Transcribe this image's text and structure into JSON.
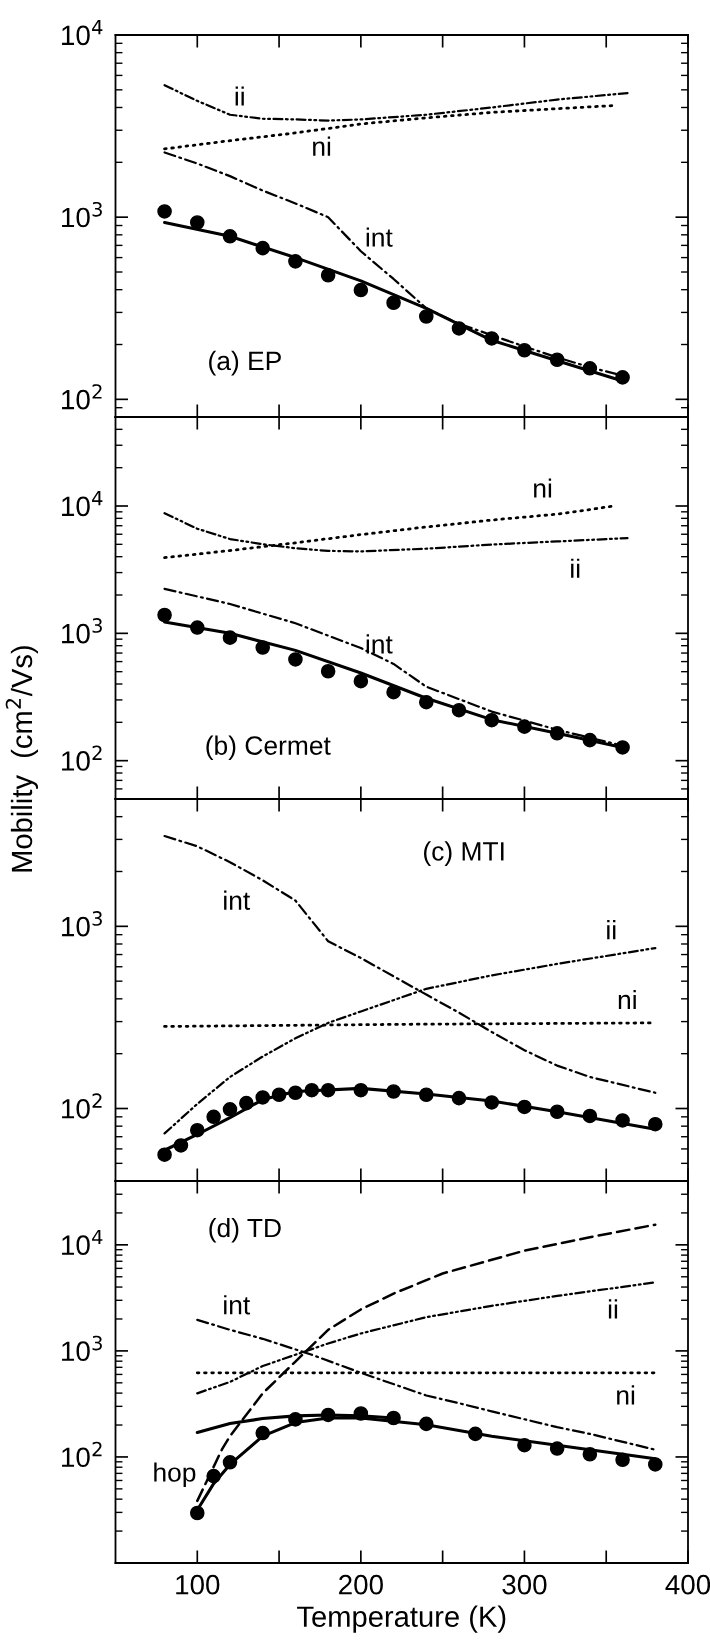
{
  "chart_data": [
    {
      "type": "line",
      "log": true,
      "xlim": [
        50,
        400
      ],
      "xticks": [
        100,
        150,
        200,
        250,
        300,
        350,
        400
      ],
      "ylim": [
        80,
        10000
      ],
      "yticks": [
        {
          "value": 100,
          "label": "10$^{2}$"
        },
        {
          "value": 1000,
          "label": "10$^{3}$"
        },
        {
          "value": 10000,
          "label": "10$^{4}$"
        }
      ],
      "tick_labels": "y",
      "grid": false,
      "series": [
        {
          "type": "scatter",
          "marker": "circle",
          "color": "#000000",
          "x": [
            80,
            100,
            120,
            140,
            160,
            180,
            200,
            220,
            240,
            260,
            280,
            300,
            320,
            340,
            360
          ],
          "values": [
            1075,
            935,
            785,
            676,
            572,
            480,
            398,
            339,
            285,
            245,
            216,
            186,
            165,
            148,
            132
          ]
        },
        {
          "type": "line",
          "line_style": "solid",
          "color": "#000000",
          "x": [
            80,
            120,
            160,
            200,
            240,
            280,
            320,
            360
          ],
          "values": [
            935,
            785,
            600,
            447,
            316,
            211,
            163,
            126
          ]
        },
        {
          "type": "line",
          "line_style": "dashdot",
          "color": "#000000",
          "x": [
            80,
            100,
            120,
            140,
            160,
            180,
            200,
            220,
            240,
            260,
            280,
            300,
            320,
            340,
            360
          ],
          "values": [
            2265,
            1970,
            1680,
            1400,
            1190,
            1000,
            650,
            458,
            316,
            260,
            225,
            195,
            170,
            150,
            135
          ]
        },
        {
          "type": "line",
          "line_style": "dashdotdot",
          "color": "#000000",
          "x": [
            80,
            100,
            120,
            140,
            160,
            180,
            200,
            240,
            280,
            320,
            363
          ],
          "values": [
            5300,
            4350,
            3650,
            3470,
            3440,
            3390,
            3440,
            3650,
            4000,
            4420,
            4800
          ]
        },
        {
          "type": "line",
          "line_style": "dotted",
          "color": "#000000",
          "x": [
            80,
            120,
            160,
            200,
            240,
            280,
            320,
            355
          ],
          "values": [
            2370,
            2630,
            2900,
            3250,
            3510,
            3760,
            3940,
            4100
          ]
        }
      ],
      "annotations": [
        "ii",
        "ni",
        "int",
        "(a) EP"
      ]
    },
    {
      "type": "line",
      "log": true,
      "xlim": [
        50,
        400
      ],
      "xticks": [
        100,
        150,
        200,
        250,
        300,
        350,
        400
      ],
      "ylim": [
        50,
        50000
      ],
      "yticks": [
        {
          "value": 100,
          "label": "10$^{2}$"
        },
        {
          "value": 1000,
          "label": "10$^{3}$"
        },
        {
          "value": 10000,
          "label": "10$^{4}$"
        }
      ],
      "tick_labels": "y",
      "grid": false,
      "series": [
        {
          "type": "scatter",
          "marker": "circle",
          "color": "#000000",
          "x": [
            80,
            100,
            120,
            140,
            160,
            180,
            200,
            220,
            240,
            260,
            280,
            300,
            320,
            340,
            360
          ],
          "values": [
            1393,
            1110,
            925,
            773,
            624,
            504,
            421,
            345,
            288,
            249,
            208,
            185,
            164,
            145,
            127
          ]
        },
        {
          "type": "line",
          "line_style": "solid",
          "color": "#000000",
          "x": [
            80,
            120,
            160,
            200,
            240,
            280,
            320,
            360
          ],
          "values": [
            1230,
            1000,
            735,
            488,
            309,
            210,
            164,
            127
          ]
        },
        {
          "type": "line",
          "line_style": "dashdot",
          "color": "#000000",
          "x": [
            80,
            120,
            160,
            200,
            220,
            240,
            280,
            320,
            360
          ],
          "values": [
            2235,
            1700,
            1200,
            766,
            575,
            381,
            243,
            175,
            131
          ]
        },
        {
          "type": "line",
          "line_style": "dashdotdot",
          "color": "#000000",
          "x": [
            80,
            100,
            120,
            140,
            160,
            180,
            200,
            240,
            280,
            320,
            363
          ],
          "values": [
            8770,
            6630,
            5500,
            5010,
            4660,
            4440,
            4400,
            4620,
            4980,
            5270,
            5590
          ]
        },
        {
          "type": "line",
          "line_style": "dotted",
          "color": "#000000",
          "x": [
            80,
            120,
            160,
            200,
            240,
            280,
            320,
            355
          ],
          "values": [
            3930,
            4470,
            5140,
            5960,
            6850,
            7760,
            8630,
            10000
          ]
        }
      ],
      "annotations": [
        "ni",
        "ii",
        "int",
        "(b) Cermet"
      ]
    },
    {
      "type": "line",
      "log": true,
      "xlim": [
        50,
        400
      ],
      "xticks": [
        100,
        150,
        200,
        250,
        300,
        350,
        400
      ],
      "ylim": [
        40,
        5000
      ],
      "yticks": [
        {
          "value": 100,
          "label": "10$^{2}$"
        },
        {
          "value": 1000,
          "label": "10$^{3}$"
        }
      ],
      "tick_labels": "y",
      "grid": false,
      "ylabel": "Mobility  (cm$^{2}$/Vs)",
      "series": [
        {
          "type": "scatter",
          "marker": "circle",
          "color": "#000000",
          "x": [
            80,
            90,
            100,
            110,
            120,
            130,
            140,
            150,
            160,
            170,
            180,
            200,
            220,
            240,
            260,
            280,
            300,
            320,
            340,
            360,
            380
          ],
          "values": [
            55.8,
            62.7,
            76,
            90,
            99,
            107,
            115,
            119,
            122,
            126,
            126,
            126,
            124,
            119,
            114,
            108,
            102,
            96,
            91,
            86,
            82
          ]
        },
        {
          "type": "line",
          "line_style": "solid",
          "color": "#000000",
          "x": [
            80,
            100,
            120,
            140,
            160,
            200,
            240,
            280,
            320,
            380
          ],
          "values": [
            59,
            72,
            89,
            112,
            124,
            129,
            120,
            110,
            96,
            77
          ]
        },
        {
          "type": "line",
          "line_style": "dashdot",
          "color": "#000000",
          "x": [
            80,
            100,
            120,
            140,
            160,
            180,
            200,
            240,
            260,
            280,
            300,
            320,
            340,
            380
          ],
          "values": [
            3130,
            2750,
            2250,
            1790,
            1385,
            828,
            670,
            422,
            336,
            263,
            209,
            172,
            149,
            122
          ]
        },
        {
          "type": "line",
          "line_style": "dashdotdot",
          "color": "#000000",
          "x": [
            80,
            100,
            120,
            140,
            160,
            180,
            200,
            240,
            280,
            320,
            380
          ],
          "values": [
            73,
            106,
            149,
            193,
            243,
            295,
            341,
            454,
            538,
            622,
            760
          ]
        },
        {
          "type": "line",
          "line_style": "dotted",
          "color": "#000000",
          "x": [
            80,
            230,
            378
          ],
          "values": [
            282,
            290,
            295
          ]
        }
      ],
      "annotations": [
        "(c) MTI",
        "int",
        "ii",
        "ni"
      ]
    },
    {
      "type": "line",
      "log": true,
      "xlim": [
        50,
        400
      ],
      "xticks": [
        {
          "value": 100,
          "label": "100"
        },
        {
          "value": 150,
          "label": null
        },
        {
          "value": 200,
          "label": "200"
        },
        {
          "value": 250,
          "label": null
        },
        {
          "value": 300,
          "label": "300"
        },
        {
          "value": 350,
          "label": null
        },
        {
          "value": 400,
          "label": "400"
        }
      ],
      "ylim": [
        10,
        40000
      ],
      "yticks": [
        {
          "value": 100,
          "label": "10$^{2}$"
        },
        {
          "value": 1000,
          "label": "10$^{3}$"
        },
        {
          "value": 10000,
          "label": "10$^{4}$"
        }
      ],
      "grid": false,
      "xlabel": "Temperature (K)",
      "series": [
        {
          "type": "scatter",
          "marker": "circle",
          "color": "#000000",
          "x": [
            100,
            110,
            120,
            140,
            160,
            180,
            200,
            220,
            240,
            270,
            300,
            320,
            340,
            360,
            380
          ],
          "values": [
            29.6,
            66,
            89,
            168,
            226,
            249,
            257,
            233,
            205,
            165,
            129,
            120,
            106,
            94,
            85
          ]
        },
        {
          "type": "line",
          "line_style": "solid",
          "color": "#000000",
          "x": [
            100,
            110,
            120,
            140,
            160,
            180,
            200,
            240,
            280,
            320,
            380
          ],
          "values": [
            31.6,
            56,
            85,
            157,
            211,
            233,
            233,
            201,
            157,
            129,
            96
          ]
        },
        {
          "type": "line",
          "line_style": "solid",
          "color": "#000000",
          "x": [
            100,
            120,
            140,
            160,
            180,
            200,
            220
          ],
          "values": [
            170,
            207,
            230,
            244,
            249,
            244,
            233
          ]
        },
        {
          "type": "line",
          "line_style": "dashed",
          "color": "#000000",
          "x": [
            100,
            115,
            120,
            140,
            160,
            180,
            200,
            220,
            250,
            300,
            340,
            380
          ],
          "values": [
            38.5,
            117,
            157,
            398,
            794,
            1580,
            2460,
            3470,
            5370,
            8810,
            11800,
            15500
          ]
        },
        {
          "type": "line",
          "line_style": "dashdot",
          "color": "#000000",
          "x": [
            100,
            120,
            140,
            170,
            200,
            240,
            260,
            280,
            320,
            340,
            380
          ],
          "values": [
            1960,
            1580,
            1300,
            920,
            621,
            380,
            321,
            269,
            191,
            165,
            117
          ]
        },
        {
          "type": "line",
          "line_style": "dashdotdot",
          "color": "#000000",
          "x": [
            100,
            120,
            140,
            160,
            180,
            200,
            240,
            280,
            320,
            380
          ],
          "values": [
            398,
            510,
            720,
            920,
            1175,
            1460,
            2080,
            2660,
            3300,
            4430
          ]
        },
        {
          "type": "line",
          "line_style": "dotted",
          "color": "#000000",
          "x": [
            100,
            380
          ],
          "values": [
            621,
            621
          ]
        }
      ],
      "annotations": [
        "(d) TD",
        "int",
        "ii",
        "ni",
        "hop"
      ]
    }
  ]
}
